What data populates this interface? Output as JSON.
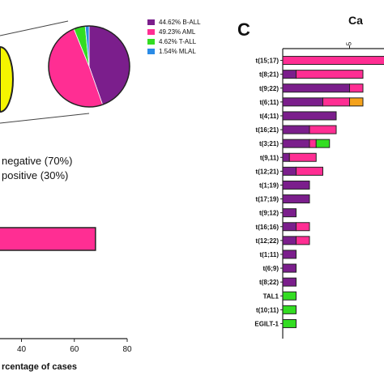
{
  "panel_c_letter": "C",
  "panel_c_title_fragment": "Ca",
  "pie_legend": [
    {
      "label": "44.62% B-ALL",
      "color": "#7b1e8c"
    },
    {
      "label": "49.23% AML",
      "color": "#ff2e93"
    },
    {
      "label": "4.62% T-ALL",
      "color": "#33dd22"
    },
    {
      "label": "1.54% MLAL",
      "color": "#2a8be6"
    }
  ],
  "status_legend": [
    {
      "label": "negative (70%)",
      "color": "#f5f500"
    },
    {
      "label": "positive (30%)",
      "color": "#ff2e93"
    }
  ],
  "left_axis": {
    "ticks": [
      "40",
      "60",
      "80"
    ],
    "xlabel": "rcentage of cases"
  },
  "right_axis": {
    "ticks": [
      "5"
    ]
  },
  "chart_data": [
    {
      "type": "pie",
      "slices": [
        {
          "label": "B-ALL",
          "value": 44.62,
          "color": "#7b1e8c"
        },
        {
          "label": "AML",
          "value": 49.23,
          "color": "#ff2e93"
        },
        {
          "label": "T-ALL",
          "value": 4.62,
          "color": "#33dd22"
        },
        {
          "label": "MLAL",
          "value": 1.54,
          "color": "#2a8be6"
        }
      ]
    },
    {
      "type": "bar",
      "orientation": "horizontal",
      "categories": [
        "positive"
      ],
      "values": [
        68
      ],
      "xlabel": "rcentage of cases",
      "xlim": [
        0,
        80
      ],
      "color": "#ff2e93"
    },
    {
      "type": "bar",
      "orientation": "horizontal",
      "stacked": true,
      "categories": [
        "t(15;17)",
        "t(8;21)",
        "t(9;22)",
        "t(6;11)",
        "t(4;11)",
        "t(16;21)",
        "t(3;21)",
        "t(9,11)",
        "t(12;21)",
        "t(1;19)",
        "t(17;19)",
        "t(9;12)",
        "t(16;16)",
        "t(12;22)",
        "t(1;11)",
        "t(6;9)",
        "t(8;22)",
        "TAL1",
        "t(10;11)",
        "EGILT-1"
      ],
      "series": [
        {
          "name": "B-ALL",
          "color": "#7b1e8c",
          "values": [
            0,
            1,
            5,
            3,
            4,
            2,
            2,
            0.5,
            1,
            2,
            2,
            1,
            1,
            1,
            1,
            1,
            1,
            0,
            0,
            0
          ]
        },
        {
          "name": "AML",
          "color": "#ff2e93",
          "values": [
            8,
            5,
            1,
            2,
            0,
            2,
            0.5,
            2,
            2,
            0,
            0,
            0,
            1,
            1,
            0,
            0,
            0,
            0,
            0,
            0
          ]
        },
        {
          "name": "T-ALL",
          "color": "#33dd22",
          "values": [
            0,
            0,
            0,
            0,
            0,
            0,
            1,
            0,
            0,
            0,
            0,
            0,
            0,
            0,
            0,
            0,
            0,
            1,
            1,
            1
          ]
        },
        {
          "name": "MLAL",
          "color": "#f5a21b",
          "values": [
            0,
            0,
            0,
            1,
            0,
            0,
            0,
            0,
            0,
            0,
            0,
            0,
            0,
            0,
            0,
            0,
            0,
            0,
            0,
            0
          ]
        }
      ],
      "xlim": [
        0,
        8
      ],
      "tick_label": "5"
    }
  ]
}
